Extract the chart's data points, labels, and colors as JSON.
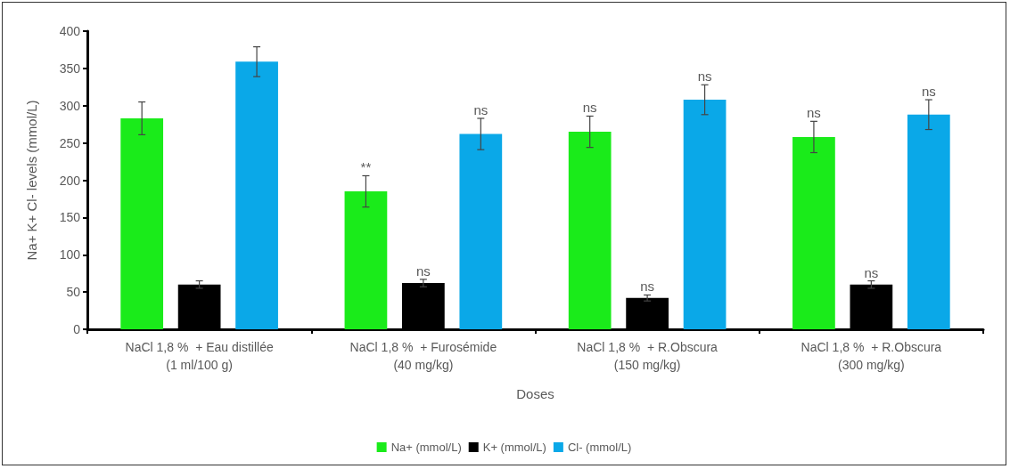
{
  "chart_data": {
    "type": "bar",
    "xlabel": "Doses",
    "ylabel": "Na+ K+ Cl- levels (mmol/L)",
    "categories": [
      "NaCl 1,8 %  + Eau distillée\n(1 ml/100 g)",
      "NaCl 1,8 %  + Furosémide\n(40 mg/kg)",
      "NaCl 1,8 %  + R.Obscura\n(150 mg/kg)",
      "NaCl 1,8 %  + R.Obscura\n(300 mg/kg)"
    ],
    "series": [
      {
        "name": "Na+ (mmol/L)",
        "color": "#1aeb1a",
        "values": [
          283,
          185,
          265,
          258
        ],
        "errors": [
          22,
          21,
          21,
          21
        ],
        "value_labels": [
          null,
          "**",
          "ns",
          "ns"
        ]
      },
      {
        "name": "K+ (mmol/L)",
        "color": "#000000",
        "values": [
          60,
          62,
          42,
          60
        ],
        "errors": [
          5,
          5,
          4,
          5
        ],
        "value_labels": [
          null,
          "ns",
          "ns",
          "ns"
        ]
      },
      {
        "name": "Cl- (mmol/L)",
        "color": "#0aa8e8",
        "values": [
          359,
          262,
          308,
          288
        ],
        "errors": [
          20,
          21,
          20,
          20
        ],
        "value_labels": [
          null,
          "ns",
          "ns",
          "ns"
        ]
      }
    ],
    "ylim": [
      0,
      400
    ],
    "yticks": [
      0,
      50,
      100,
      150,
      200,
      250,
      300,
      350,
      400
    ],
    "grid": false,
    "legend": "bottom"
  }
}
